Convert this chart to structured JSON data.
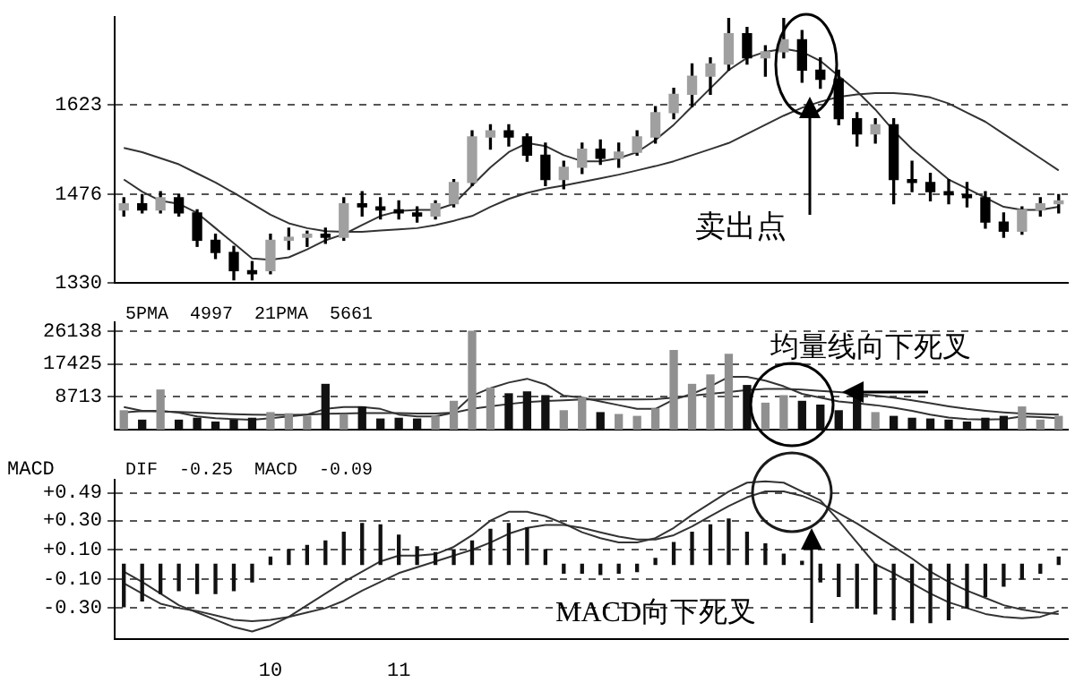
{
  "chart_data": [
    {
      "type": "candlestick",
      "tick_labels": "y",
      "grid": "y",
      "ylim": [
        1330,
        1767
      ],
      "yticks": [
        1330,
        1476,
        1623
      ],
      "categories": [
        null,
        null,
        null,
        null,
        null,
        null,
        null,
        null,
        null,
        null,
        null,
        null,
        null,
        null,
        null,
        null,
        null,
        null,
        null,
        null,
        null,
        null,
        null,
        null,
        null,
        null,
        null,
        null,
        null,
        null,
        null,
        null,
        null,
        null,
        null,
        null,
        null,
        null,
        null,
        null,
        null,
        null,
        null,
        null,
        null,
        null,
        null,
        null,
        null,
        null,
        null,
        null
      ],
      "ohlc": [
        [
          1450,
          1470,
          1440,
          1460
        ],
        [
          1460,
          1475,
          1445,
          1450
        ],
        [
          1450,
          1480,
          1445,
          1470
        ],
        [
          1470,
          1475,
          1440,
          1445
        ],
        [
          1445,
          1450,
          1390,
          1400
        ],
        [
          1400,
          1410,
          1370,
          1380
        ],
        [
          1380,
          1390,
          1335,
          1350
        ],
        [
          1350,
          1365,
          1335,
          1345
        ],
        [
          1350,
          1410,
          1345,
          1400
        ],
        [
          1400,
          1420,
          1385,
          1405
        ],
        [
          1405,
          1415,
          1390,
          1410
        ],
        [
          1410,
          1420,
          1395,
          1405
        ],
        [
          1405,
          1470,
          1400,
          1460
        ],
        [
          1460,
          1480,
          1440,
          1455
        ],
        [
          1455,
          1470,
          1435,
          1450
        ],
        [
          1450,
          1465,
          1435,
          1445
        ],
        [
          1445,
          1455,
          1430,
          1440
        ],
        [
          1440,
          1465,
          1435,
          1460
        ],
        [
          1460,
          1500,
          1455,
          1495
        ],
        [
          1495,
          1580,
          1490,
          1570
        ],
        [
          1570,
          1590,
          1550,
          1580
        ],
        [
          1580,
          1590,
          1555,
          1570
        ],
        [
          1570,
          1575,
          1530,
          1540
        ],
        [
          1540,
          1560,
          1490,
          1500
        ],
        [
          1500,
          1530,
          1485,
          1520
        ],
        [
          1520,
          1560,
          1510,
          1550
        ],
        [
          1550,
          1565,
          1525,
          1535
        ],
        [
          1535,
          1560,
          1520,
          1545
        ],
        [
          1545,
          1580,
          1540,
          1570
        ],
        [
          1570,
          1620,
          1560,
          1610
        ],
        [
          1610,
          1650,
          1600,
          1640
        ],
        [
          1640,
          1690,
          1620,
          1670
        ],
        [
          1670,
          1700,
          1640,
          1690
        ],
        [
          1690,
          1765,
          1680,
          1740
        ],
        [
          1740,
          1750,
          1690,
          1700
        ],
        [
          1700,
          1720,
          1670,
          1710
        ],
        [
          1710,
          1765,
          1700,
          1730
        ],
        [
          1730,
          1745,
          1660,
          1680
        ],
        [
          1680,
          1700,
          1650,
          1665
        ],
        [
          1665,
          1680,
          1590,
          1600
        ],
        [
          1600,
          1610,
          1555,
          1575
        ],
        [
          1575,
          1600,
          1560,
          1590
        ],
        [
          1590,
          1600,
          1460,
          1500
        ],
        [
          1500,
          1530,
          1480,
          1495
        ],
        [
          1495,
          1510,
          1465,
          1480
        ],
        [
          1480,
          1500,
          1460,
          1475
        ],
        [
          1475,
          1495,
          1455,
          1470
        ],
        [
          1470,
          1480,
          1420,
          1430
        ],
        [
          1430,
          1445,
          1405,
          1415
        ],
        [
          1415,
          1455,
          1410,
          1450
        ],
        [
          1450,
          1470,
          1440,
          1460
        ],
        [
          1460,
          1475,
          1445,
          1465
        ]
      ],
      "series": [
        {
          "type": "line",
          "color": "#333333",
          "values": [
            1500,
            1480,
            1465,
            1460,
            1445,
            1420,
            1395,
            1370,
            1368,
            1372,
            1385,
            1400,
            1410,
            1425,
            1440,
            1448,
            1450,
            1450,
            1460,
            1490,
            1520,
            1545,
            1560,
            1555,
            1540,
            1530,
            1530,
            1535,
            1545,
            1565,
            1590,
            1620,
            1650,
            1680,
            1700,
            1710,
            1715,
            1710,
            1695,
            1670,
            1645,
            1615,
            1580,
            1550,
            1525,
            1500,
            1485,
            1470,
            1455,
            1450,
            1450,
            1455
          ]
        },
        {
          "type": "line",
          "color": "#333333",
          "values": [
            1552,
            1545,
            1535,
            1525,
            1510,
            1495,
            1478,
            1460,
            1442,
            1428,
            1420,
            1415,
            1414,
            1414,
            1416,
            1418,
            1420,
            1425,
            1432,
            1440,
            1455,
            1468,
            1478,
            1485,
            1490,
            1496,
            1502,
            1508,
            1515,
            1522,
            1530,
            1540,
            1550,
            1560,
            1575,
            1590,
            1605,
            1618,
            1628,
            1636,
            1640,
            1642,
            1642,
            1640,
            1635,
            1625,
            1610,
            1595,
            1575,
            1555,
            1535,
            1515
          ]
        }
      ],
      "annotations": [
        "卖出点"
      ]
    },
    {
      "type": "bar",
      "tick_labels": "y",
      "grid": "y",
      "ylim": [
        0,
        28500
      ],
      "yticks": [
        8713,
        17425,
        26138
      ],
      "categories": [
        null,
        null,
        null,
        null,
        null,
        null,
        null,
        null,
        null,
        null,
        null,
        null,
        null,
        null,
        null,
        null,
        null,
        null,
        null,
        null,
        null,
        null,
        null,
        null,
        null,
        null,
        null,
        null,
        null,
        null,
        null,
        null,
        null,
        null,
        null,
        null,
        null,
        null,
        null,
        null,
        null,
        null,
        null,
        null,
        null,
        null,
        null,
        null,
        null,
        null,
        null,
        null
      ],
      "series": [
        {
          "type": "bar",
          "colors": [
            "#909090",
            "#111111",
            "#909090",
            "#111111",
            "#111111",
            "#111111",
            "#111111",
            "#111111",
            "#909090",
            "#909090",
            "#909090",
            "#111111",
            "#909090",
            "#111111",
            "#111111",
            "#111111",
            "#111111",
            "#909090",
            "#909090",
            "#909090",
            "#909090",
            "#111111",
            "#111111",
            "#111111",
            "#909090",
            "#909090",
            "#111111",
            "#909090",
            "#909090",
            "#909090",
            "#909090",
            "#909090",
            "#909090",
            "#909090",
            "#111111",
            "#909090",
            "#909090",
            "#111111",
            "#111111",
            "#111111",
            "#111111",
            "#909090",
            "#111111",
            "#111111",
            "#111111",
            "#111111",
            "#111111",
            "#111111",
            "#111111",
            "#909090",
            "#909090",
            "#909090"
          ],
          "values": [
            5000,
            2500,
            10500,
            2500,
            3000,
            2000,
            2500,
            3000,
            4500,
            4200,
            3500,
            12000,
            4000,
            6000,
            2800,
            3000,
            2800,
            3500,
            7500,
            26100,
            11000,
            9500,
            10000,
            9000,
            5000,
            8500,
            4500,
            4000,
            3500,
            5500,
            21000,
            12000,
            14500,
            20000,
            11700,
            7000,
            9000,
            7500,
            6500,
            5000,
            9000,
            4500,
            3500,
            3000,
            2800,
            2500,
            2000,
            3000,
            3500,
            6000,
            2500,
            3500
          ]
        },
        {
          "type": "line",
          "color": "#333333",
          "values": [
            6000,
            5000,
            5000,
            4500,
            3500,
            3000,
            2800,
            2600,
            3000,
            3500,
            4000,
            5500,
            6000,
            6000,
            5500,
            4000,
            3500,
            3500,
            4500,
            9000,
            11000,
            12500,
            13500,
            12000,
            9000,
            8500,
            7500,
            6500,
            5500,
            5500,
            8000,
            9500,
            11500,
            14000,
            14000,
            13000,
            11500,
            9500,
            8500,
            7500,
            7000,
            6500,
            5800,
            5000,
            4000,
            3200,
            2800,
            2700,
            2800,
            3500,
            3300,
            3000
          ]
        },
        {
          "type": "line",
          "color": "#333333",
          "values": [
            4600,
            4900,
            4800,
            4700,
            4500,
            4300,
            4100,
            4000,
            3900,
            3900,
            4000,
            4200,
            4300,
            4400,
            4400,
            4400,
            4300,
            4300,
            4500,
            5500,
            6200,
            6800,
            7300,
            7600,
            7800,
            8000,
            8000,
            8000,
            8000,
            8100,
            8500,
            9000,
            9500,
            10000,
            10500,
            10800,
            10800,
            10600,
            10300,
            10000,
            9500,
            9000,
            8500,
            7800,
            7000,
            6200,
            5500,
            5000,
            4600,
            4300,
            4100,
            4000
          ]
        }
      ],
      "annotations": [
        "5PMA  4997  21PMA  5661",
        "均量线向下死叉"
      ]
    },
    {
      "type": "bar",
      "grid": "y",
      "ylabel": "MACD",
      "ylim": [
        -0.51,
        0.58
      ],
      "yticks": [
        {
          "value": 0.49,
          "label": "+0.49"
        },
        {
          "value": 0.3,
          "label": "+0.30"
        },
        {
          "value": 0.1,
          "label": "+0.10"
        },
        {
          "value": -0.1,
          "label": "-0.10"
        },
        {
          "value": -0.3,
          "label": "-0.30"
        }
      ],
      "categories": [
        null,
        null,
        null,
        null,
        null,
        null,
        null,
        null,
        "10",
        null,
        null,
        null,
        null,
        null,
        null,
        "11",
        null,
        null,
        null,
        null,
        null,
        null,
        null,
        null,
        null,
        null,
        null,
        null,
        null,
        null,
        null,
        null,
        null,
        null,
        null,
        null,
        null,
        null,
        null,
        null,
        null,
        null,
        null,
        null,
        null,
        null,
        null,
        null,
        null,
        null,
        null,
        null
      ],
      "series": [
        {
          "type": "bar",
          "color": "#111111",
          "values": [
            -0.29,
            -0.25,
            -0.2,
            -0.18,
            -0.2,
            -0.2,
            -0.18,
            -0.12,
            0.05,
            0.1,
            0.13,
            0.16,
            0.22,
            0.28,
            0.27,
            0.2,
            0.12,
            0.08,
            0.1,
            0.16,
            0.24,
            0.28,
            0.25,
            0.1,
            -0.06,
            -0.06,
            -0.07,
            -0.06,
            -0.05,
            0.04,
            0.15,
            0.22,
            0.27,
            0.31,
            0.22,
            0.14,
            0.07,
            0.02,
            -0.12,
            -0.22,
            -0.3,
            -0.34,
            -0.38,
            -0.4,
            -0.4,
            -0.38,
            -0.3,
            -0.22,
            -0.15,
            -0.1,
            -0.06,
            0.05
          ]
        },
        {
          "type": "line",
          "color": "#333333",
          "values": [
            -0.05,
            -0.12,
            -0.2,
            -0.28,
            -0.33,
            -0.38,
            -0.43,
            -0.46,
            -0.42,
            -0.36,
            -0.28,
            -0.2,
            -0.12,
            -0.05,
            0.02,
            0.06,
            0.06,
            0.07,
            0.12,
            0.2,
            0.3,
            0.36,
            0.36,
            0.33,
            0.28,
            0.22,
            0.18,
            0.15,
            0.15,
            0.18,
            0.25,
            0.34,
            0.42,
            0.5,
            0.56,
            0.57,
            0.56,
            0.5,
            0.44,
            0.3,
            0.15,
            0.0,
            -0.06,
            -0.13,
            -0.2,
            -0.26,
            -0.3,
            -0.34,
            -0.36,
            -0.37,
            -0.36,
            -0.32
          ]
        },
        {
          "type": "line",
          "color": "#333333",
          "values": [
            -0.13,
            -0.2,
            -0.27,
            -0.3,
            -0.32,
            -0.35,
            -0.38,
            -0.39,
            -0.38,
            -0.36,
            -0.33,
            -0.3,
            -0.25,
            -0.18,
            -0.12,
            -0.06,
            -0.02,
            0.02,
            0.06,
            0.1,
            0.15,
            0.21,
            0.25,
            0.27,
            0.27,
            0.25,
            0.22,
            0.19,
            0.17,
            0.17,
            0.2,
            0.26,
            0.33,
            0.4,
            0.46,
            0.5,
            0.5,
            0.47,
            0.42,
            0.35,
            0.28,
            0.2,
            0.12,
            0.04,
            -0.05,
            -0.12,
            -0.18,
            -0.23,
            -0.28,
            -0.31,
            -0.33,
            -0.34
          ]
        }
      ],
      "annotations": [
        "DIF  -0.25  MACD  -0.09",
        "MACD向下死叉"
      ]
    }
  ]
}
